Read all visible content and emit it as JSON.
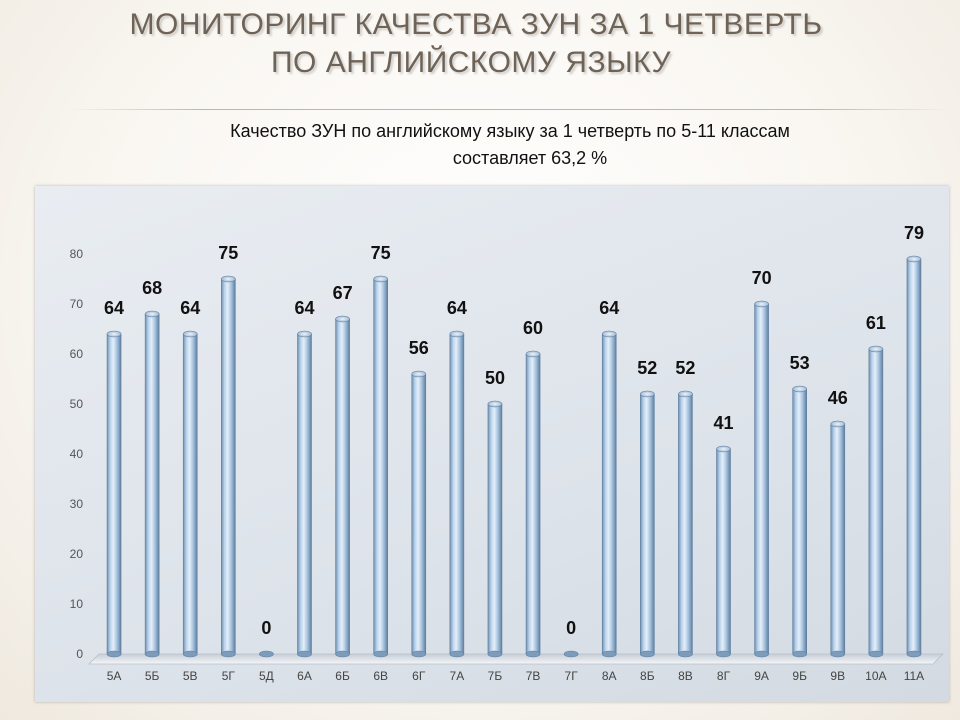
{
  "title": {
    "line1": "Мониторинг качества ЗУН за 1  четверть",
    "line2": "по  английскому языку"
  },
  "subtitle": {
    "line1": "Качество ЗУН по английскому языку  за 1 четверть  по 5-11 классам",
    "line2": "составляет  63,2  %"
  },
  "chart_data": {
    "type": "bar",
    "categories": [
      "5А",
      "5Б",
      "5В",
      "5Г",
      "5Д",
      "6А",
      "6Б",
      "6В",
      "6Г",
      "7А",
      "7Б",
      "7В",
      "7Г",
      "8А",
      "8Б",
      "8В",
      "8Г",
      "9А",
      "9Б",
      "9В",
      "10А",
      "11А"
    ],
    "values": [
      64,
      68,
      64,
      75,
      0,
      64,
      67,
      75,
      56,
      64,
      50,
      60,
      0,
      64,
      52,
      52,
      41,
      70,
      53,
      46,
      61,
      79
    ],
    "ylim": [
      0,
      80
    ],
    "yticks": [
      0,
      10,
      20,
      30,
      40,
      50,
      60,
      70,
      80
    ],
    "grid": false,
    "legend": "none",
    "bar_color": "#a9c4de",
    "bar_edge": "#6f8fb0"
  }
}
